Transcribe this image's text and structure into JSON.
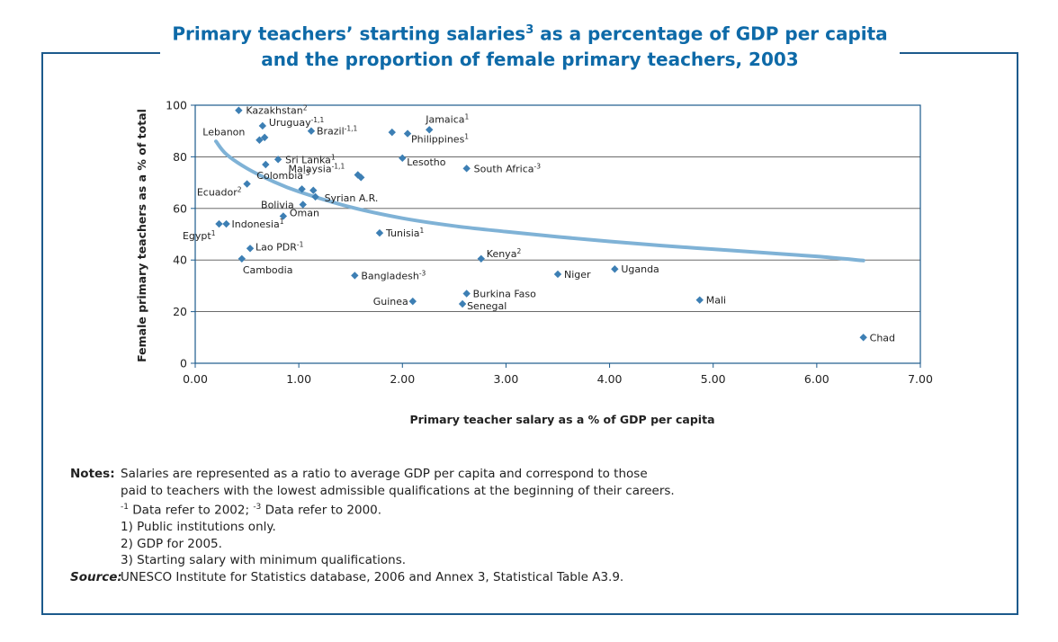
{
  "title": {
    "line1_main": "Primary teachers’ starting salaries",
    "line1_sup": "3",
    "line1_rest": " as a percentage of GDP per capita",
    "line2": "and the proportion of female primary teachers, 2003"
  },
  "notes": {
    "label": "Notes:",
    "line1": "Salaries are represented as a ratio to average GDP per capita and correspond to those",
    "line2": "paid to teachers with the lowest admissible qualifications at the beginning of their careers.",
    "line3_sup1": "-1",
    "line3_a": " Data refer to 2002; ",
    "line3_sup2": "-3",
    "line3_b": " Data refer to 2000.",
    "line4": "1) Public institutions only.",
    "line5": "2) GDP for 2005.",
    "line6": "3) Starting salary with minimum qualifications.",
    "source_label": "Source:",
    "source_text": "UNESCO Institute for Statistics database, 2006 and Annex 3, Statistical Table A3.9."
  },
  "chart_data": {
    "type": "scatter",
    "xlabel": "Primary teacher salary as a % of GDP per capita",
    "ylabel": "Female primary teachers as a % of total",
    "xlim": [
      0,
      7
    ],
    "ylim": [
      0,
      100
    ],
    "x_ticks": [
      "0.00",
      "1.00",
      "2.00",
      "3.00",
      "4.00",
      "5.00",
      "6.00",
      "7.00"
    ],
    "y_ticks": [
      "0",
      "20",
      "40",
      "60",
      "80",
      "100"
    ],
    "grid": "horizontal",
    "marker_color": "#3d7fb4",
    "trend_color": "#7fb2d6",
    "axis_color": "#1c5a8c",
    "trend_line": [
      [
        0.2,
        86
      ],
      [
        0.3,
        81
      ],
      [
        0.5,
        75.5
      ],
      [
        0.75,
        70.5
      ],
      [
        1.0,
        66.5
      ],
      [
        1.5,
        60.5
      ],
      [
        2.0,
        56.2
      ],
      [
        2.5,
        53.2
      ],
      [
        3.0,
        51
      ],
      [
        3.5,
        49
      ],
      [
        4.0,
        47.2
      ],
      [
        4.5,
        45.6
      ],
      [
        5.0,
        44.2
      ],
      [
        5.5,
        42.8
      ],
      [
        6.0,
        41.4
      ],
      [
        6.45,
        39.8
      ]
    ],
    "points": [
      {
        "x": 0.42,
        "y": 98,
        "label": "Kazakhstan",
        "sup": "2"
      },
      {
        "x": 0.65,
        "y": 92,
        "label": "Uruguay",
        "sup": "-1,1"
      },
      {
        "x": 1.12,
        "y": 90,
        "label": "Brazil",
        "sup": "-1,1"
      },
      {
        "x": 0.62,
        "y": 86.5,
        "label": "Lebanon",
        "sup": ""
      },
      {
        "x": 0.67,
        "y": 87.5,
        "label": "",
        "sup": ""
      },
      {
        "x": 1.9,
        "y": 89.5,
        "label": "",
        "sup": ""
      },
      {
        "x": 2.05,
        "y": 89,
        "label": "Philippines",
        "sup": "1"
      },
      {
        "x": 2.26,
        "y": 90.5,
        "label": "Jamaica",
        "sup": "1"
      },
      {
        "x": 0.8,
        "y": 79,
        "label": "Sri Lanka",
        "sup": "1"
      },
      {
        "x": 0.68,
        "y": 77,
        "label": "Colombia",
        "sup": "-3"
      },
      {
        "x": 2.0,
        "y": 79.5,
        "label": "Lesotho",
        "sup": ""
      },
      {
        "x": 2.62,
        "y": 75.5,
        "label": "South Africa",
        "sup": "-3"
      },
      {
        "x": 1.57,
        "y": 73,
        "label": "",
        "sup": ""
      },
      {
        "x": 1.6,
        "y": 72,
        "label": "Malaysia",
        "sup": "-1,1"
      },
      {
        "x": 0.5,
        "y": 69.5,
        "label": "Ecuador",
        "sup": "2"
      },
      {
        "x": 1.03,
        "y": 67.5,
        "label": "",
        "sup": ""
      },
      {
        "x": 1.14,
        "y": 67,
        "label": "",
        "sup": ""
      },
      {
        "x": 1.16,
        "y": 64.5,
        "label": "Syrian A.R.",
        "sup": ""
      },
      {
        "x": 1.04,
        "y": 61.5,
        "label": "Bolivia",
        "sup": ""
      },
      {
        "x": 0.85,
        "y": 57,
        "label": "Oman",
        "sup": ""
      },
      {
        "x": 0.23,
        "y": 54,
        "label": "Egypt",
        "sup": "1"
      },
      {
        "x": 0.3,
        "y": 54,
        "label": "Indonesia",
        "sup": "1"
      },
      {
        "x": 1.78,
        "y": 50.5,
        "label": "Tunisia",
        "sup": "1"
      },
      {
        "x": 0.53,
        "y": 44.5,
        "label": "Lao PDR",
        "sup": "-1"
      },
      {
        "x": 0.45,
        "y": 40.5,
        "label": "Cambodia",
        "sup": ""
      },
      {
        "x": 2.76,
        "y": 40.5,
        "label": "Kenya",
        "sup": "2"
      },
      {
        "x": 1.54,
        "y": 34,
        "label": "Bangladesh",
        "sup": "-3"
      },
      {
        "x": 3.5,
        "y": 34.5,
        "label": "Niger",
        "sup": ""
      },
      {
        "x": 4.05,
        "y": 36.5,
        "label": "Uganda",
        "sup": ""
      },
      {
        "x": 2.62,
        "y": 27,
        "label": "Burkina Faso",
        "sup": ""
      },
      {
        "x": 2.1,
        "y": 24,
        "label": "Guinea",
        "sup": ""
      },
      {
        "x": 2.58,
        "y": 23,
        "label": "Senegal",
        "sup": ""
      },
      {
        "x": 4.87,
        "y": 24.5,
        "label": "Mali",
        "sup": ""
      },
      {
        "x": 6.45,
        "y": 10,
        "label": "Chad",
        "sup": ""
      }
    ]
  }
}
